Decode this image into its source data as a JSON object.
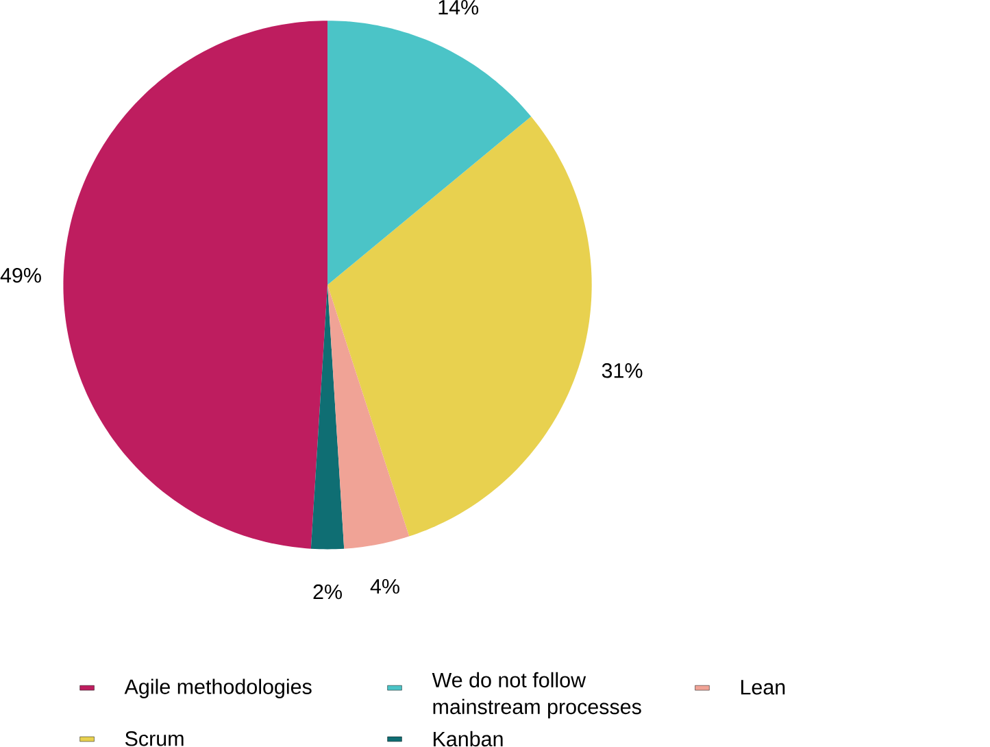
{
  "chart_data": {
    "type": "pie",
    "categories": [
      "We do not follow mainstream processes",
      "Scrum",
      "Lean",
      "Kanban",
      "Agile methodologies"
    ],
    "values": [
      14,
      31,
      4,
      2,
      49
    ],
    "value_labels": [
      "14%",
      "31%",
      "4%",
      "2%",
      "49%"
    ],
    "colors": [
      "#4bc4c7",
      "#e8d14f",
      "#f0a396",
      "#0f6e73",
      "#be1d5f"
    ],
    "legend": "bottom"
  }
}
